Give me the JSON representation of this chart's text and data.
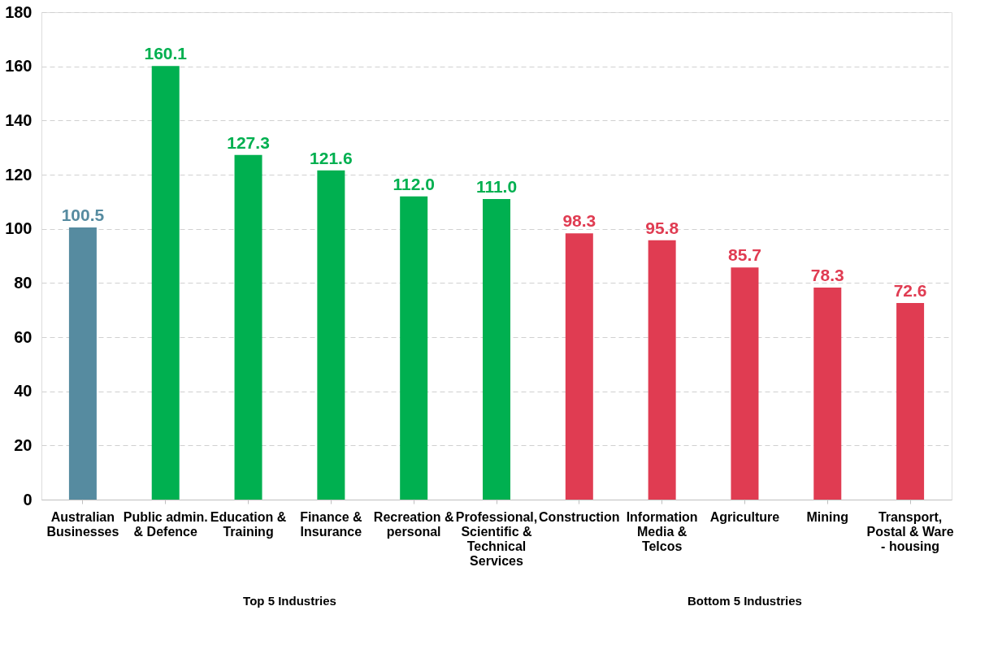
{
  "chart_data": {
    "type": "bar",
    "categories": [
      "Australian Businesses",
      "Public admin. & Defence",
      "Education & Training",
      "Finance & Insurance",
      "Recreation & personal",
      "Professional, Scientific & Technical Services",
      "Construction",
      "Information Media & Telcos",
      "Agriculture",
      "Mining",
      "Transport, Postal & Ware - housing"
    ],
    "values": [
      100.5,
      160.1,
      127.3,
      121.6,
      112.0,
      111.0,
      98.3,
      95.8,
      85.7,
      78.3,
      72.6
    ],
    "value_labels": [
      "100.5",
      "160.1",
      "127.3",
      "121.6",
      "112.0",
      "111.0",
      "98.3",
      "95.8",
      "85.7",
      "78.3",
      "72.6"
    ],
    "colors": [
      "#568ba0",
      "#00b050",
      "#00b050",
      "#00b050",
      "#00b050",
      "#00b050",
      "#e03c52",
      "#e03c52",
      "#e03c52",
      "#e03c52",
      "#e03c52"
    ],
    "ylim": [
      0,
      180
    ],
    "yticks": [
      0,
      20,
      40,
      60,
      80,
      100,
      120,
      140,
      160,
      180
    ],
    "grid": "y",
    "annotations": [
      "Top 5 Industries",
      "Bottom 5 Industries"
    ]
  }
}
